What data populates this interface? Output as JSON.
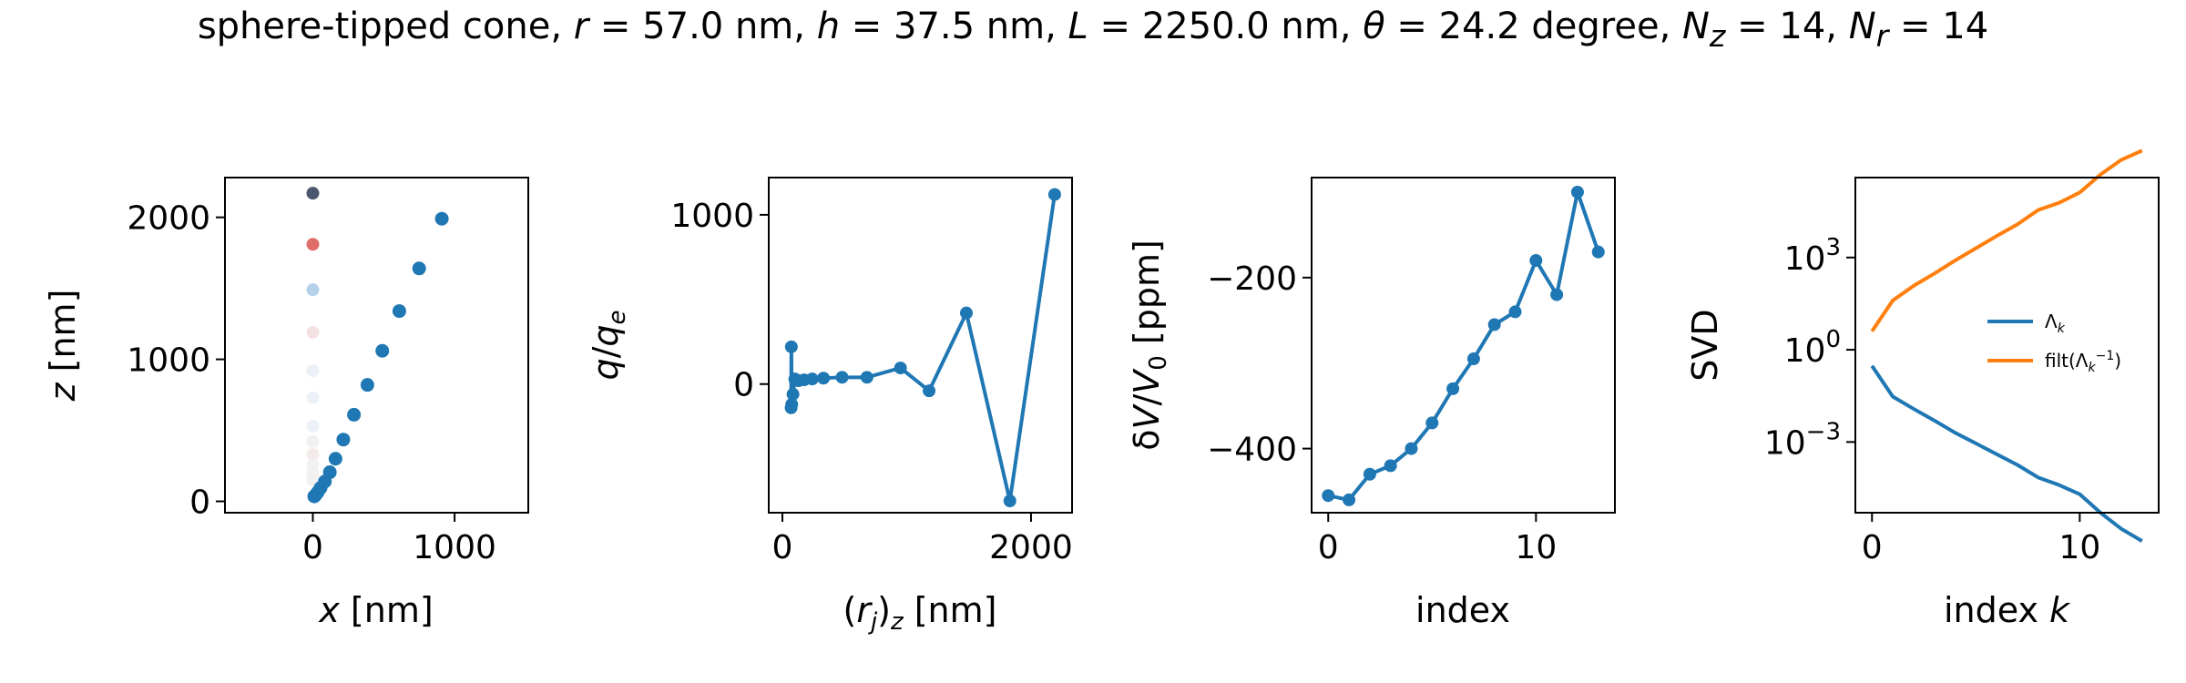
{
  "title": {
    "prefix": "sphere-tipped cone, ",
    "r_sym": "r",
    "r_val": " = 57.0 nm, ",
    "h_sym": "h",
    "h_val": " = 37.5 nm, ",
    "L_sym": "L",
    "L_val": " = 2250.0 nm, ",
    "theta_sym": "θ",
    "theta_val": " = 24.2 degree, ",
    "Nz_sym": "N",
    "Nz_sub": "z",
    "Nz_val": " = 14, ",
    "Nr_sym": "N",
    "Nr_sub": "r",
    "Nr_val": " = 14"
  },
  "colors": {
    "blue": "#1f77b4",
    "orange": "#ff7f0e",
    "dark": "#2b3a55",
    "red": "#d9534f",
    "lightblue": "#a9c9e8",
    "ghost": "#e8eef5"
  },
  "chart_data": [
    {
      "type": "scatter",
      "xlabel": {
        "sym": "x",
        "unit": " [nm]"
      },
      "ylabel": {
        "sym": "z",
        "unit": " [nm]"
      },
      "xlim": [
        -620,
        1520
      ],
      "ylim": [
        -80,
        2280
      ],
      "xticks": [
        0,
        1000
      ],
      "yticks": [
        0,
        1000,
        2000
      ],
      "series": [
        {
          "role": "cone-surface",
          "x": [
            10,
            20,
            35,
            55,
            85,
            120,
            160,
            215,
            290,
            385,
            490,
            610,
            750,
            910
          ],
          "y": [
            35,
            45,
            65,
            95,
            140,
            205,
            300,
            435,
            610,
            820,
            1060,
            1340,
            1640,
            1990
          ]
        },
        {
          "role": "axis-charges",
          "x": [
            0,
            0,
            0,
            0,
            0,
            0,
            0,
            0,
            0,
            0,
            0,
            0
          ],
          "y": [
            2170,
            1810,
            1490,
            1190,
            920,
            730,
            530,
            420,
            330,
            260,
            200,
            150
          ],
          "colors": [
            "#2b3a55",
            "#d9534f",
            "#a9c9e8",
            "#f3dcdc",
            "#e8eef5",
            "#e8eef5",
            "#e8eef5",
            "#eeeeee",
            "#f5e8e8",
            "#eeeeee",
            "#eeeeee",
            "#f0f0f0"
          ]
        }
      ]
    },
    {
      "type": "line",
      "xlabel": {
        "pre": "(",
        "sym": "r",
        "sub": "j",
        "mid": ")",
        "sub2": "z",
        "unit": " [nm]"
      },
      "ylabel": {
        "sym": "q",
        "slash": "/",
        "sym2": "q",
        "sub": "e"
      },
      "xlim": [
        -110,
        2330
      ],
      "ylim": [
        -760,
        1220
      ],
      "xticks": [
        0,
        2000
      ],
      "yticks": [
        0,
        1000
      ],
      "x": [
        70,
        72,
        75,
        85,
        100,
        130,
        175,
        240,
        330,
        480,
        680,
        950,
        1180,
        1480,
        1830,
        2190
      ],
      "y": [
        -140,
        220,
        -120,
        -60,
        30,
        20,
        25,
        30,
        35,
        40,
        40,
        95,
        -40,
        420,
        -690,
        1120
      ]
    },
    {
      "type": "line",
      "xlabel": "index",
      "ylabel": {
        "pre": "δ",
        "sym": "V",
        "slash": "/",
        "sym2": "V",
        "sub": "0",
        "unit": " [ppm]"
      },
      "xlim": [
        -0.8,
        13.8
      ],
      "ylim": [
        -475,
        -83
      ],
      "xticks": [
        0,
        10
      ],
      "yticks": [
        -400,
        -200
      ],
      "x": [
        0,
        1,
        2,
        3,
        4,
        5,
        6,
        7,
        8,
        9,
        10,
        11,
        12,
        13
      ],
      "y": [
        -455,
        -460,
        -430,
        -420,
        -400,
        -370,
        -330,
        -295,
        -255,
        -240,
        -180,
        -220,
        -100,
        -170
      ]
    },
    {
      "type": "line",
      "log_y": true,
      "xlabel": {
        "pre": "index ",
        "sym": "k"
      },
      "ylabel": "SVD",
      "xlim": [
        -0.8,
        13.8
      ],
      "ylim_log10": [
        -5.3,
        5.6
      ],
      "xticks": [
        0,
        10
      ],
      "yticks_log10": [
        -3,
        0,
        3
      ],
      "legend": "center-right",
      "series": [
        {
          "name": "Λk",
          "label_main": "Λ",
          "label_sub": "k",
          "color": "#1f77b4",
          "x": [
            0,
            1,
            2,
            3,
            4,
            5,
            6,
            7,
            8,
            9,
            10,
            11,
            12,
            13
          ],
          "y": [
            0.3,
            0.03,
            0.012,
            0.005,
            0.002,
            0.0009,
            0.0004,
            0.00018,
            7e-05,
            4e-05,
            2e-05,
            5e-06,
            1.5e-06,
            6e-07
          ]
        },
        {
          "name": "filt(Λk^-1)",
          "label_main": "filt(Λ",
          "label_sub": "k",
          "label_sup": "−1",
          "label_end": ")",
          "color": "#ff7f0e",
          "x": [
            0,
            1,
            2,
            3,
            4,
            5,
            6,
            7,
            8,
            9,
            10,
            11,
            12,
            13
          ],
          "y": [
            4,
            40,
            120,
            300,
            800,
            2000,
            5000,
            12000,
            35000,
            60000,
            130000,
            500000,
            1500000,
            3000000
          ]
        }
      ]
    }
  ]
}
